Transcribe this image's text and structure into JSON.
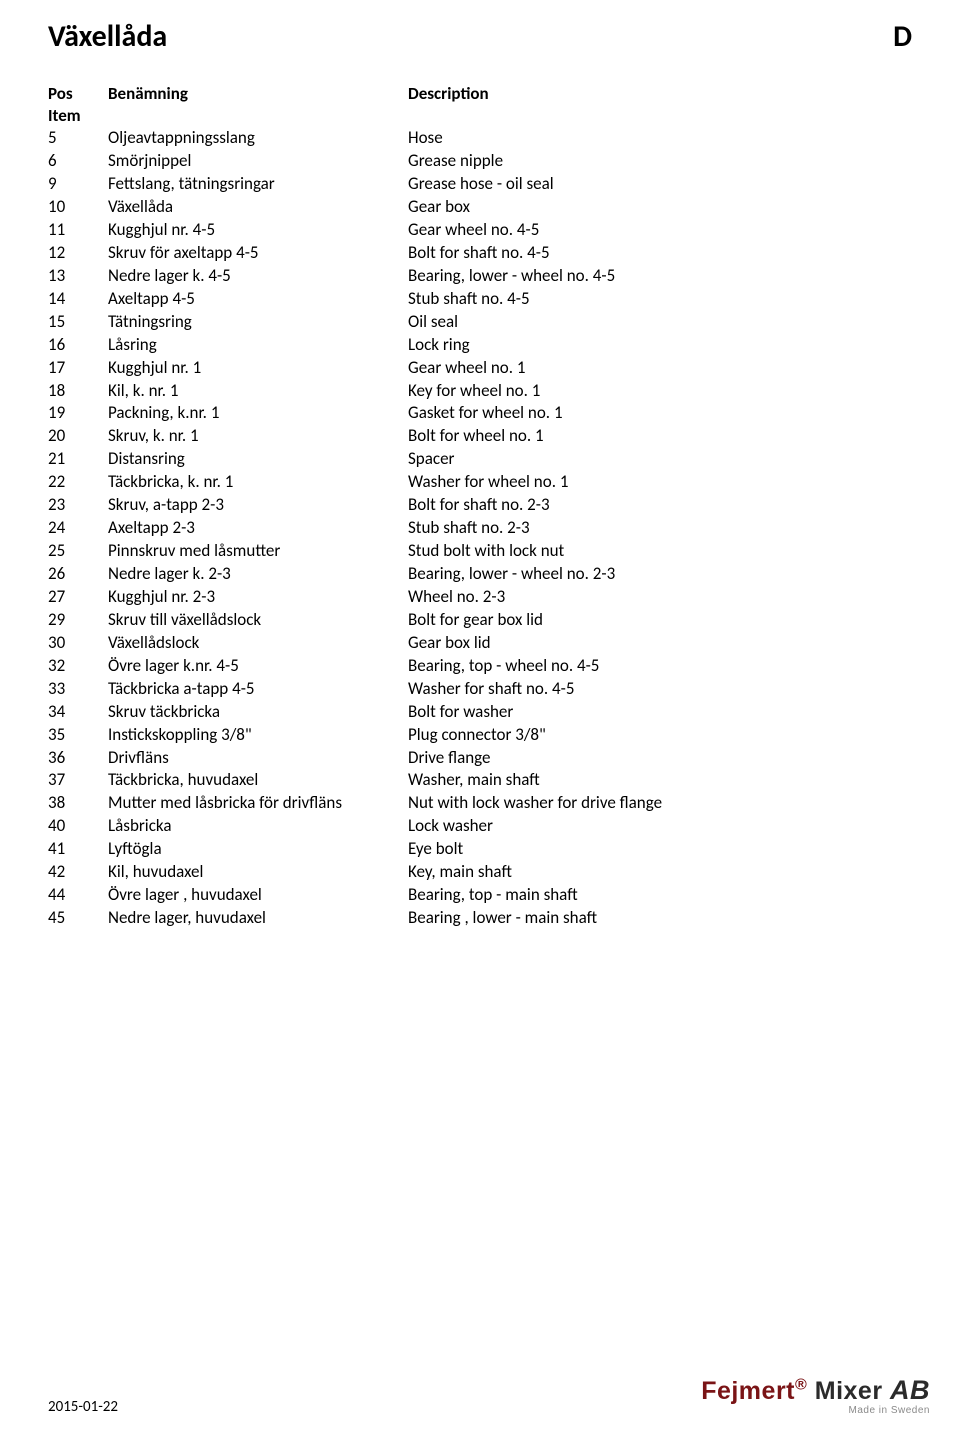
{
  "header": {
    "title_left": "Växellåda",
    "title_right": "D"
  },
  "columns": {
    "pos": "Pos",
    "item": "Item",
    "benamning": "Benämning",
    "description": "Description"
  },
  "rows": [
    {
      "pos": "5",
      "ben": "Oljeavtappningsslang",
      "desc": "Hose"
    },
    {
      "pos": "6",
      "ben": "Smörjnippel",
      "desc": "Grease nipple"
    },
    {
      "pos": "9",
      "ben": "Fettslang, tätningsringar",
      "desc": "Grease hose - oil seal"
    },
    {
      "pos": "10",
      "ben": "Växellåda",
      "desc": "Gear box"
    },
    {
      "pos": "11",
      "ben": "Kugghjul nr. 4-5",
      "desc": "Gear wheel no. 4-5"
    },
    {
      "pos": "12",
      "ben": "Skruv för axeltapp 4-5",
      "desc": "Bolt for shaft no. 4-5"
    },
    {
      "pos": "13",
      "ben": "Nedre lager k. 4-5",
      "desc": "Bearing, lower - wheel no. 4-5"
    },
    {
      "pos": "14",
      "ben": "Axeltapp 4-5",
      "desc": "Stub shaft no. 4-5"
    },
    {
      "pos": "15",
      "ben": "Tätningsring",
      "desc": "Oil seal"
    },
    {
      "pos": "16",
      "ben": "Låsring",
      "desc": "Lock ring"
    },
    {
      "pos": "17",
      "ben": "Kugghjul nr. 1",
      "desc": "Gear wheel no. 1"
    },
    {
      "pos": "18",
      "ben": "Kil, k. nr. 1",
      "desc": "Key for wheel no. 1"
    },
    {
      "pos": "19",
      "ben": "Packning, k.nr. 1",
      "desc": "Gasket for wheel no. 1"
    },
    {
      "pos": "20",
      "ben": "Skruv, k. nr. 1",
      "desc": "Bolt for wheel no. 1"
    },
    {
      "pos": "21",
      "ben": "Distansring",
      "desc": "Spacer"
    },
    {
      "pos": "22",
      "ben": "Täckbricka, k. nr. 1",
      "desc": "Washer for wheel no. 1"
    },
    {
      "pos": "23",
      "ben": "Skruv, a-tapp 2-3",
      "desc": "Bolt for shaft no. 2-3"
    },
    {
      "pos": "24",
      "ben": "Axeltapp 2-3",
      "desc": "Stub shaft no. 2-3"
    },
    {
      "pos": "25",
      "ben": "Pinnskruv med låsmutter",
      "desc": "Stud bolt with lock nut"
    },
    {
      "pos": "26",
      "ben": "Nedre lager k. 2-3",
      "desc": "Bearing, lower - wheel no. 2-3"
    },
    {
      "pos": "27",
      "ben": "Kugghjul nr. 2-3",
      "desc": "Wheel no. 2-3"
    },
    {
      "pos": "29",
      "ben": "Skruv till växellådslock",
      "desc": "Bolt for gear box lid"
    },
    {
      "pos": "30",
      "ben": "Växellådslock",
      "desc": "Gear box lid"
    },
    {
      "pos": "32",
      "ben": "Övre lager k.nr. 4-5",
      "desc": "Bearing, top - wheel no. 4-5"
    },
    {
      "pos": "33",
      "ben": "Täckbricka a-tapp 4-5",
      "desc": "Washer  for shaft no. 4-5"
    },
    {
      "pos": "34",
      "ben": "Skruv täckbricka",
      "desc": "Bolt for washer"
    },
    {
      "pos": "35",
      "ben": "Instickskoppling 3/8\"",
      "desc": "Plug connector 3/8\""
    },
    {
      "pos": "36",
      "ben": "Drivfläns",
      "desc": "Drive flange"
    },
    {
      "pos": "37",
      "ben": "Täckbricka, huvudaxel",
      "desc": "Washer, main shaft"
    },
    {
      "pos": "38",
      "ben": "Mutter med låsbricka för drivfläns",
      "desc": "Nut with lock washer for drive flange"
    },
    {
      "pos": "40",
      "ben": "Låsbricka",
      "desc": "Lock washer"
    },
    {
      "pos": "41",
      "ben": "Lyftögla",
      "desc": "Eye bolt"
    },
    {
      "pos": "42",
      "ben": "Kil, huvudaxel",
      "desc": "Key, main shaft"
    },
    {
      "pos": "44",
      "ben": "Övre lager , huvudaxel",
      "desc": "Bearing, top - main shaft"
    },
    {
      "pos": "45",
      "ben": "Nedre lager, huvudaxel",
      "desc": "Bearing , lower - main shaft"
    }
  ],
  "footer": {
    "date": "2015-01-22",
    "logo_fejmert": "Fejmert",
    "logo_reg": "®",
    "logo_mixer": " Mixer ",
    "logo_ab": "AB",
    "logo_sub": "Made in Sweden"
  },
  "style": {
    "page_bg": "#ffffff",
    "text_color": "#000000",
    "title_fontsize": 30,
    "body_fontsize": 17,
    "logo_brand_color": "#7a1416",
    "logo_dark_color": "#2b2b2b",
    "logo_sub_color": "#8a8a8a"
  }
}
